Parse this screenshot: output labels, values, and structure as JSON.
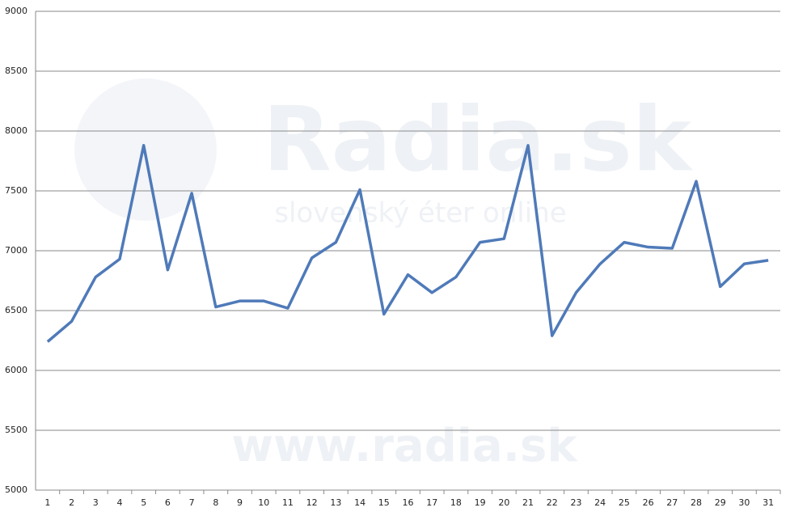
{
  "chart_data": {
    "type": "line",
    "watermark": [
      "Radia.sk",
      "slovenský éter online",
      "www.radia.sk"
    ],
    "categories": [
      "1",
      "2",
      "3",
      "4",
      "5",
      "6",
      "7",
      "8",
      "9",
      "10",
      "11",
      "12",
      "13",
      "14",
      "15",
      "16",
      "17",
      "18",
      "19",
      "20",
      "21",
      "22",
      "23",
      "24",
      "25",
      "26",
      "27",
      "28",
      "29",
      "30",
      "31"
    ],
    "values": [
      6240,
      6410,
      6780,
      6930,
      7880,
      6840,
      7480,
      6530,
      6580,
      6580,
      6520,
      6940,
      7070,
      7510,
      6470,
      6800,
      6650,
      6780,
      7070,
      7100,
      7880,
      6290,
      6650,
      6890,
      7070,
      7030,
      7020,
      7580,
      6700,
      6890,
      6920
    ],
    "color": "#4f7ab9",
    "ylim": [
      5000,
      9000
    ],
    "yticks": [
      5000,
      5500,
      6000,
      6500,
      7000,
      7500,
      8000,
      8500,
      9000
    ],
    "grid": true
  }
}
